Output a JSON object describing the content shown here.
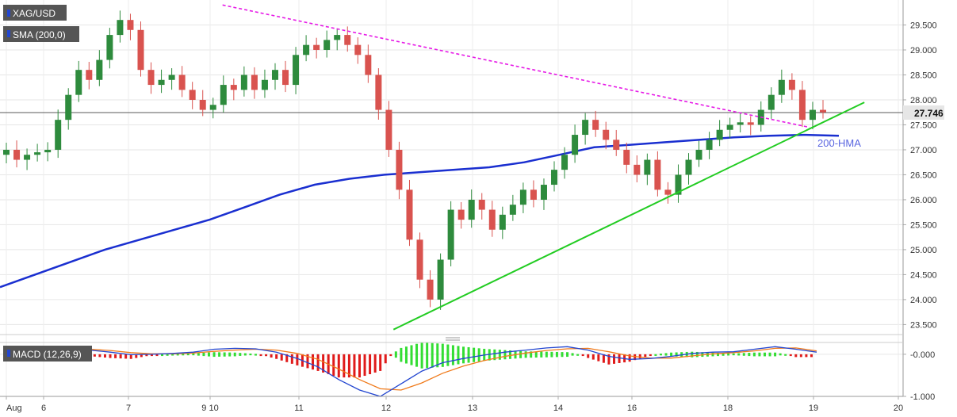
{
  "header": {
    "symbol": "XAG/USD",
    "indicator": "SMA (200,0)",
    "macd_label": "MACD (12,26,9)"
  },
  "annotations": {
    "hma_label": "200-HMA"
  },
  "price_tag": "27.746",
  "colors": {
    "bull": "#2e8b3d",
    "bear": "#d9534f",
    "hma": "#1a2fd0",
    "downtrend": "#e619e6",
    "uptrend": "#22cc22",
    "macd_line": "#2346d0",
    "signal_line": "#f07a1a",
    "hist_pos": "#33dd33",
    "hist_neg": "#e01a1a",
    "tag_bg": "#555555"
  },
  "chart_data": [
    {
      "type": "candlestick",
      "title": "XAG/USD",
      "x_ticks": [
        "Aug",
        "6",
        "7",
        "9 10",
        "11",
        "12",
        "13",
        "14",
        "16",
        "18",
        "19",
        "20"
      ],
      "x_range": [
        0,
        28
      ],
      "ylim": [
        23.3,
        30.0
      ],
      "y_ticks": [
        "23.500",
        "24.000",
        "24.500",
        "25.000",
        "25.500",
        "26.000",
        "26.500",
        "27.000",
        "27.500",
        "28.000",
        "28.500",
        "29.000",
        "29.500"
      ],
      "current_price": 27.746,
      "grid": true,
      "closes": [
        27.0,
        26.8,
        26.9,
        26.95,
        27.0,
        27.6,
        28.1,
        28.6,
        28.4,
        28.8,
        29.3,
        29.6,
        29.4,
        28.6,
        28.3,
        28.4,
        28.5,
        28.2,
        28.0,
        27.8,
        27.9,
        28.3,
        28.2,
        28.5,
        28.2,
        28.4,
        28.6,
        28.3,
        28.9,
        29.1,
        29.0,
        29.2,
        29.3,
        29.1,
        28.9,
        28.5,
        27.8,
        27.0,
        26.2,
        25.2,
        24.4,
        24.0,
        24.8,
        25.8,
        25.6,
        26.0,
        25.8,
        25.4,
        25.7,
        25.9,
        26.2,
        26.0,
        26.3,
        26.6,
        26.9,
        27.3,
        27.6,
        27.4,
        27.2,
        27.0,
        26.7,
        26.5,
        26.8,
        26.2,
        26.1,
        26.5,
        26.8,
        27.0,
        27.2,
        27.4,
        27.5,
        27.55,
        27.5,
        27.8,
        28.1,
        28.4,
        28.2,
        27.6,
        27.8,
        27.75
      ],
      "series": [
        {
          "name": "200-HMA",
          "type": "line",
          "values": [
            24.25,
            24.5,
            24.75,
            25.0,
            25.2,
            25.4,
            25.6,
            25.85,
            26.1,
            26.3,
            26.42,
            26.5,
            26.55,
            26.6,
            26.65,
            26.75,
            26.9,
            27.05,
            27.1,
            27.15,
            27.2,
            27.25,
            27.28,
            27.3,
            27.28
          ]
        },
        {
          "name": "Downtrend line",
          "type": "line",
          "points": [
            [
              6.9,
              29.9
            ],
            [
              25.1,
              27.45
            ]
          ]
        },
        {
          "name": "Uptrend line",
          "type": "line",
          "points": [
            [
              12.2,
              23.4
            ],
            [
              26.8,
              27.95
            ]
          ]
        }
      ]
    },
    {
      "type": "macd",
      "title": "MACD (12,26,9)",
      "ylim": [
        -1.0,
        0.28
      ],
      "y_ticks": [
        "-0.000",
        "-1.000"
      ],
      "macd": [
        0.05,
        0.1,
        0.12,
        0.15,
        0.1,
        0.05,
        -0.01,
        0.0,
        0.02,
        0.05,
        0.12,
        0.14,
        0.13,
        0.05,
        -0.1,
        -0.3,
        -0.6,
        -0.85,
        -1.0,
        -0.7,
        -0.4,
        -0.2,
        -0.1,
        -0.02,
        0.05,
        0.1,
        0.15,
        0.18,
        0.1,
        -0.05,
        -0.12,
        -0.1,
        -0.05,
        0.02,
        0.05,
        0.06,
        0.12,
        0.18,
        0.12,
        0.05
      ],
      "signal": [
        0.06,
        0.08,
        0.1,
        0.12,
        0.12,
        0.09,
        0.04,
        0.01,
        0.01,
        0.03,
        0.07,
        0.1,
        0.12,
        0.1,
        0.02,
        -0.12,
        -0.35,
        -0.6,
        -0.82,
        -0.85,
        -0.68,
        -0.45,
        -0.28,
        -0.15,
        -0.05,
        0.03,
        0.09,
        0.13,
        0.14,
        0.06,
        -0.04,
        -0.09,
        -0.09,
        -0.04,
        0.01,
        0.04,
        0.08,
        0.14,
        0.15,
        0.08
      ]
    }
  ]
}
